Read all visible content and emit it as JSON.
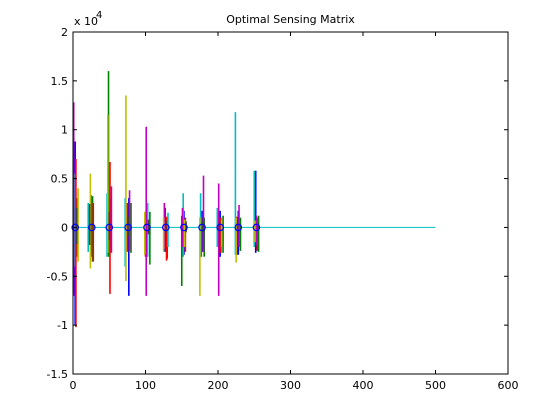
{
  "chart_data": {
    "type": "line",
    "title": "Optimal Sensing Matrix",
    "xlabel": "",
    "ylabel": "",
    "y_scale_label": "x 10",
    "y_scale_exponent": "4",
    "xlim": [
      0,
      600
    ],
    "ylim": [
      -15000,
      20000
    ],
    "grid": false,
    "legend": "none",
    "x_ticks": [
      0,
      100,
      200,
      300,
      400,
      500,
      600
    ],
    "x_tick_labels": [
      "0",
      "100",
      "200",
      "300",
      "400",
      "500",
      "600"
    ],
    "y_ticks": [
      -15000,
      -10000,
      -5000,
      0,
      5000,
      10000,
      15000,
      20000
    ],
    "y_tick_labels": [
      "-1.5",
      "-1",
      "-0.5",
      "0",
      "0.5",
      "1",
      "1.5",
      "2"
    ],
    "baseline": {
      "x": [
        0,
        500
      ],
      "y": 0,
      "color": "#00bfbf"
    },
    "series": [
      {
        "color": "#0000ff",
        "values": [
          [
            3,
            8800,
            -10000
          ],
          [
            26,
            3000,
            -2500
          ],
          [
            52,
            3000,
            -2200
          ],
          [
            77,
            3000,
            -7000
          ],
          [
            102,
            2200,
            -3000
          ],
          [
            127,
            2000,
            -2500
          ],
          [
            153,
            1700,
            -2800
          ],
          [
            178,
            1700,
            -2500
          ],
          [
            203,
            1700,
            -3000
          ],
          [
            228,
            1700,
            -2800
          ],
          [
            252,
            5800,
            -2600
          ]
        ]
      },
      {
        "color": "#007f00",
        "values": [
          [
            6,
            3000,
            -3000
          ],
          [
            27,
            3200,
            -3500
          ],
          [
            49,
            16000,
            -3000
          ],
          [
            80,
            2500,
            -2600
          ],
          [
            106,
            1600,
            -3800
          ],
          [
            130,
            1000,
            -3200
          ],
          [
            150,
            1200,
            -6000
          ],
          [
            181,
            1000,
            -3000
          ],
          [
            207,
            1200,
            -2600
          ],
          [
            231,
            1000,
            -2400
          ],
          [
            256,
            1200,
            -2500
          ]
        ]
      },
      {
        "color": "#ff0000",
        "values": [
          [
            4,
            7000,
            -10200
          ],
          [
            28,
            2500,
            -3500
          ],
          [
            51,
            6700,
            -6800
          ],
          [
            75,
            2500,
            -2500
          ],
          [
            100,
            1600,
            -3000
          ],
          [
            129,
            1100,
            -3400
          ],
          [
            155,
            1000,
            -2500
          ],
          [
            177,
            1100,
            -3000
          ],
          [
            204,
            1000,
            -2600
          ],
          [
            226,
            1100,
            -2800
          ],
          [
            254,
            1000,
            -2400
          ]
        ]
      },
      {
        "color": "#00bfbf",
        "values": [
          [
            2,
            5500,
            -4000
          ],
          [
            21,
            2500,
            -2500
          ],
          [
            47,
            3500,
            -3000
          ],
          [
            72,
            3000,
            -4000
          ],
          [
            103,
            2500,
            -3000
          ],
          [
            131,
            1500,
            -2000
          ],
          [
            152,
            3500,
            -3000
          ],
          [
            176,
            3500,
            -3000
          ],
          [
            199,
            2000,
            -2000
          ],
          [
            224,
            11800,
            -2800
          ],
          [
            250,
            5800,
            -2000
          ]
        ]
      },
      {
        "color": "#bf00bf",
        "values": [
          [
            1,
            12800,
            -7000
          ],
          [
            25,
            3300,
            -3000
          ],
          [
            53,
            4200,
            -2600
          ],
          [
            78,
            3800,
            -2400
          ],
          [
            101,
            10300,
            -7000
          ],
          [
            126,
            2500,
            -2200
          ],
          [
            151,
            2000,
            -2000
          ],
          [
            180,
            5300,
            -2500
          ],
          [
            201,
            4500,
            -7000
          ],
          [
            229,
            2300,
            -2000
          ],
          [
            253,
            1200,
            -1800
          ]
        ]
      },
      {
        "color": "#bfbf00",
        "values": [
          [
            7,
            4000,
            -3500
          ],
          [
            24,
            5500,
            -4200
          ],
          [
            48,
            11500,
            -2600
          ],
          [
            73,
            13500,
            -5500
          ],
          [
            99,
            1600,
            -2800
          ],
          [
            125,
            1000,
            -2500
          ],
          [
            154,
            800,
            -2000
          ],
          [
            175,
            1000,
            -7000
          ],
          [
            205,
            800,
            -2000
          ],
          [
            225,
            1000,
            -3600
          ],
          [
            251,
            700,
            -1500
          ]
        ]
      },
      {
        "color": "#404040",
        "values": [
          [
            5,
            2000,
            -1700
          ],
          [
            23,
            2400,
            -1800
          ],
          [
            50,
            1600,
            -1300
          ],
          [
            76,
            1100,
            -900
          ],
          [
            104,
            800,
            -700
          ],
          [
            128,
            700,
            -600
          ],
          [
            156,
            600,
            -500
          ],
          [
            179,
            600,
            -500
          ],
          [
            202,
            500,
            -400
          ],
          [
            227,
            500,
            -400
          ],
          [
            255,
            400,
            -300
          ]
        ]
      }
    ]
  }
}
